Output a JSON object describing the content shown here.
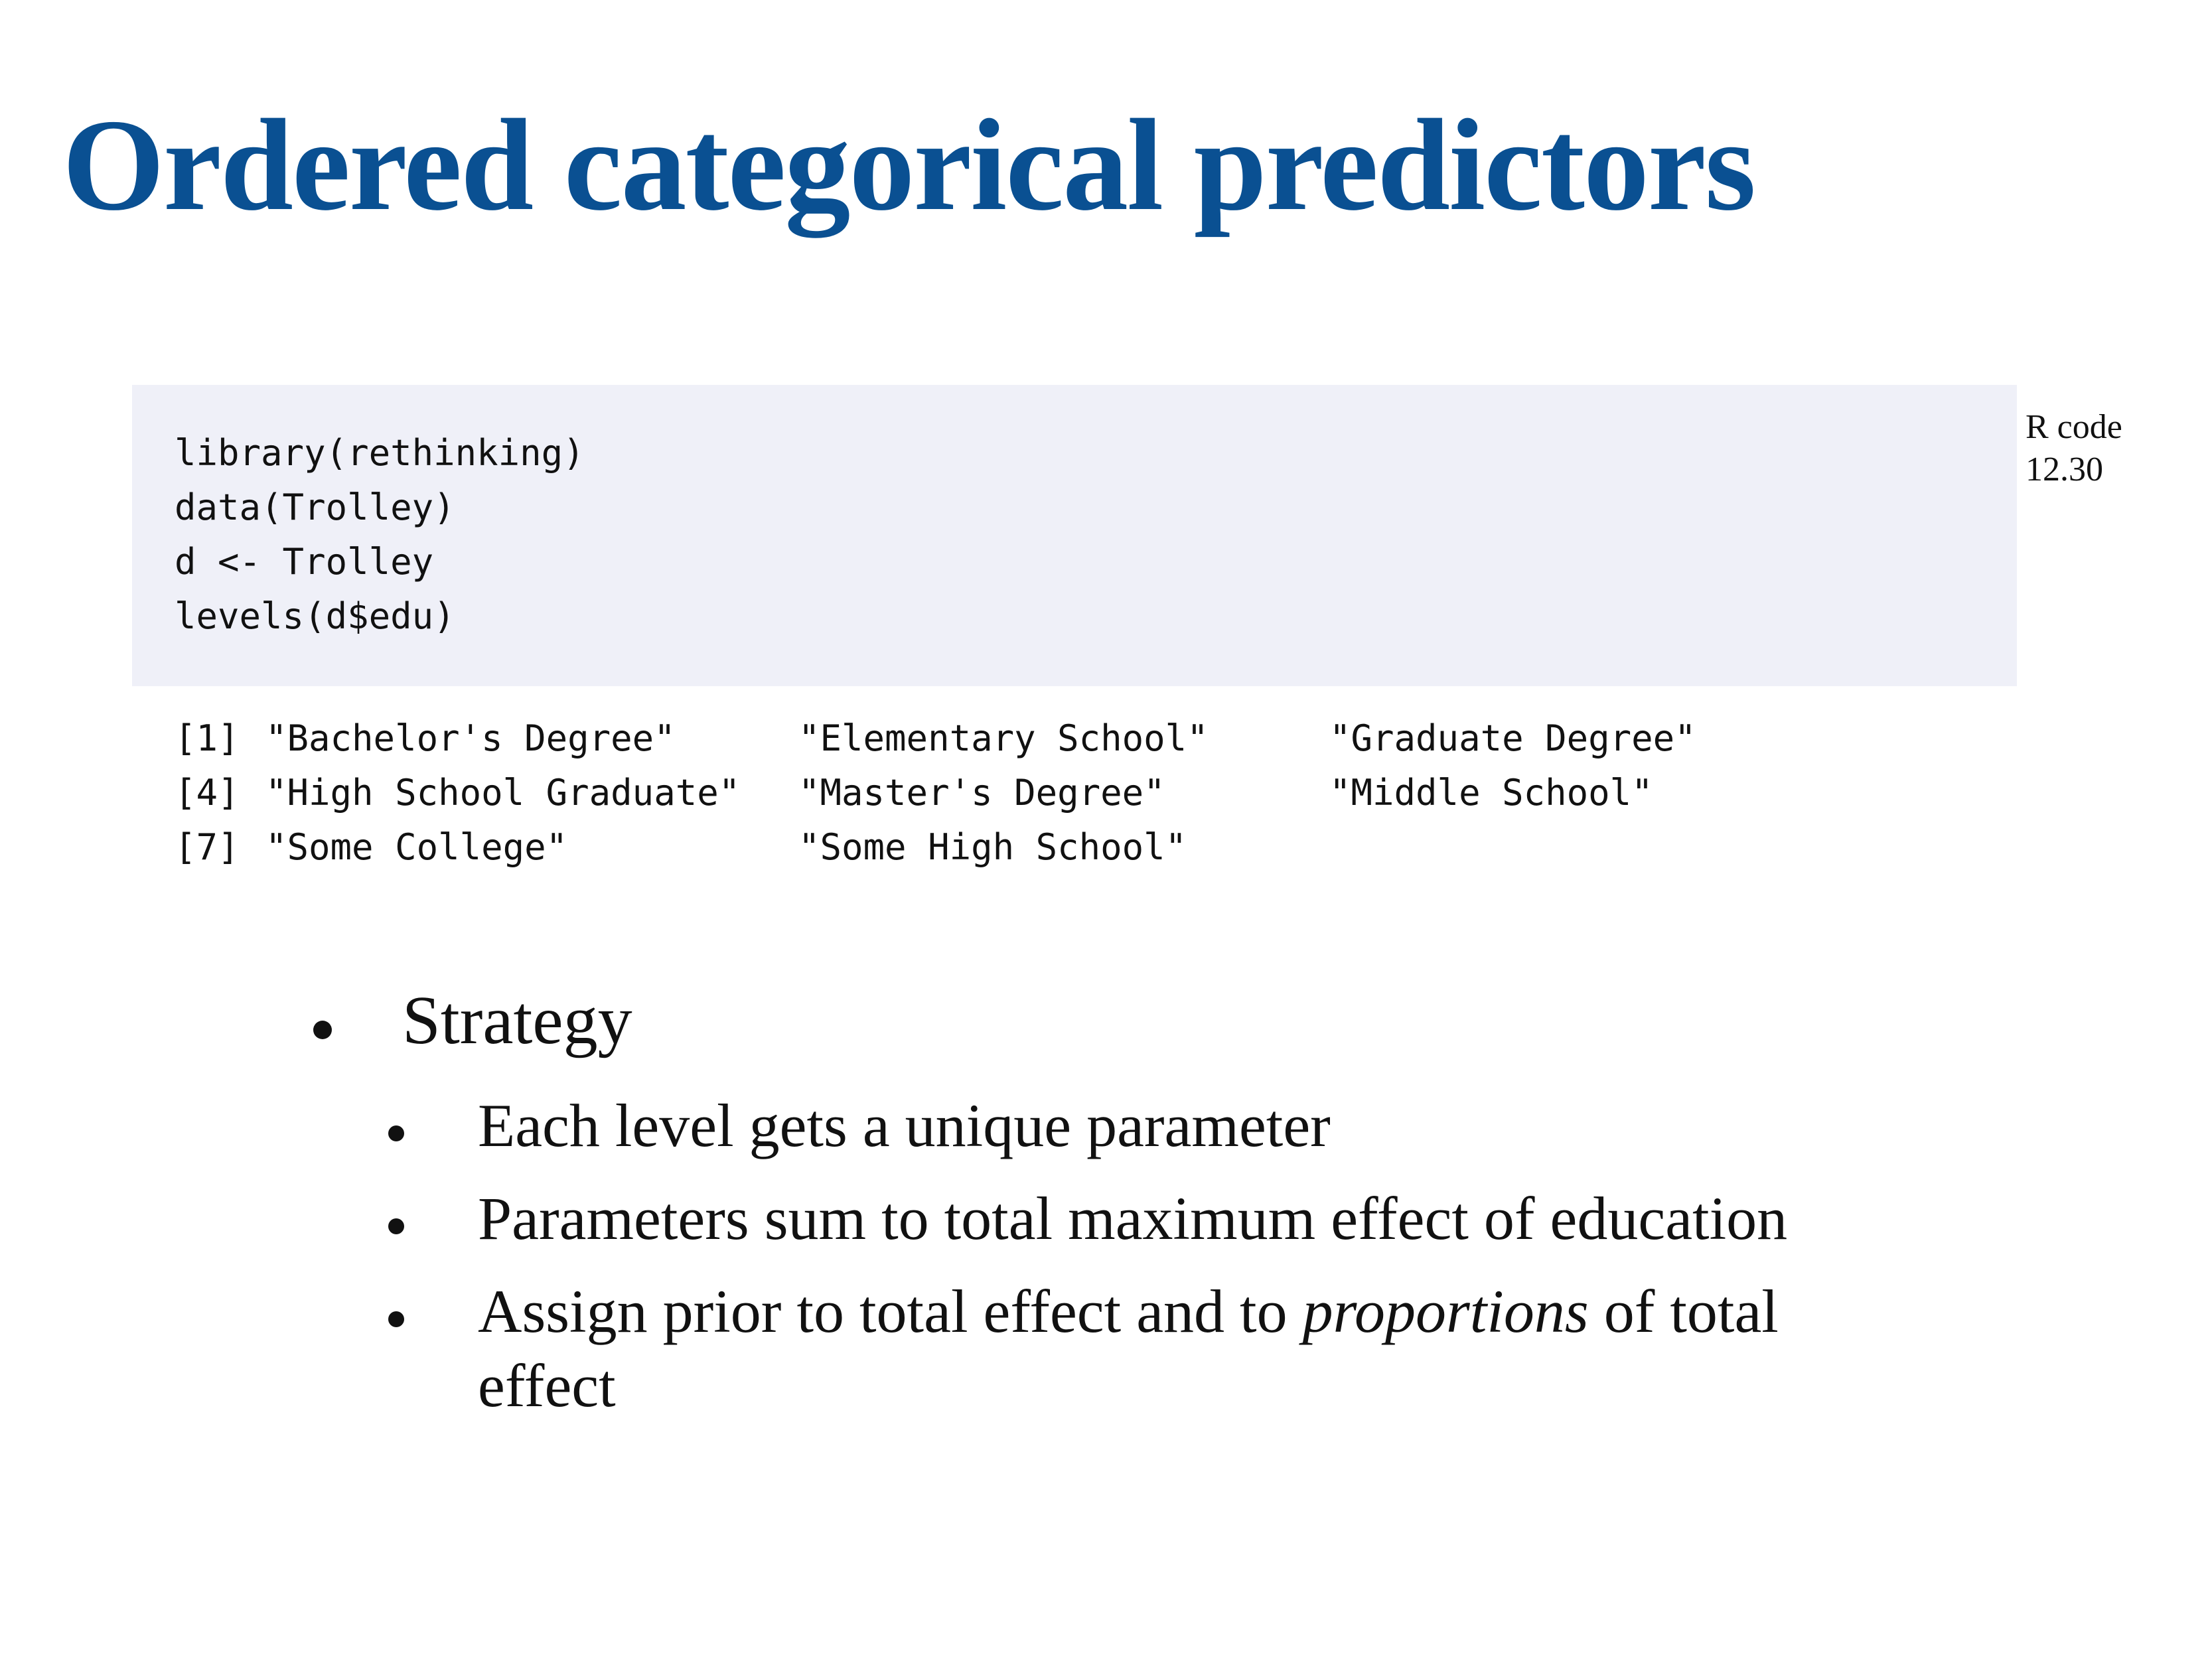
{
  "title": "Ordered categorical predictors",
  "code": {
    "lines": [
      "library(rethinking)",
      "data(Trolley)",
      "d <- Trolley",
      "levels(d$edu)"
    ],
    "note_line1": "R code",
    "note_line2": "12.30"
  },
  "output": {
    "rows": [
      {
        "idx": "[1]",
        "a": "\"Bachelor's Degree\"",
        "b": "\"Elementary School\"",
        "c": "\"Graduate Degree\""
      },
      {
        "idx": "[4]",
        "a": "\"High School Graduate\"",
        "b": "\"Master's Degree\"",
        "c": "\"Middle School\""
      },
      {
        "idx": "[7]",
        "a": "\"Some College\"",
        "b": "\"Some High School\"",
        "c": ""
      }
    ]
  },
  "bullets": {
    "main": "Strategy",
    "sub1": "Each level gets a unique parameter",
    "sub2": "Parameters sum to total maximum effect of education",
    "sub3_pre": "Assign prior to total effect and to ",
    "sub3_em": "proportions",
    "sub3_post": " of total",
    "sub3_line2": "effect"
  }
}
